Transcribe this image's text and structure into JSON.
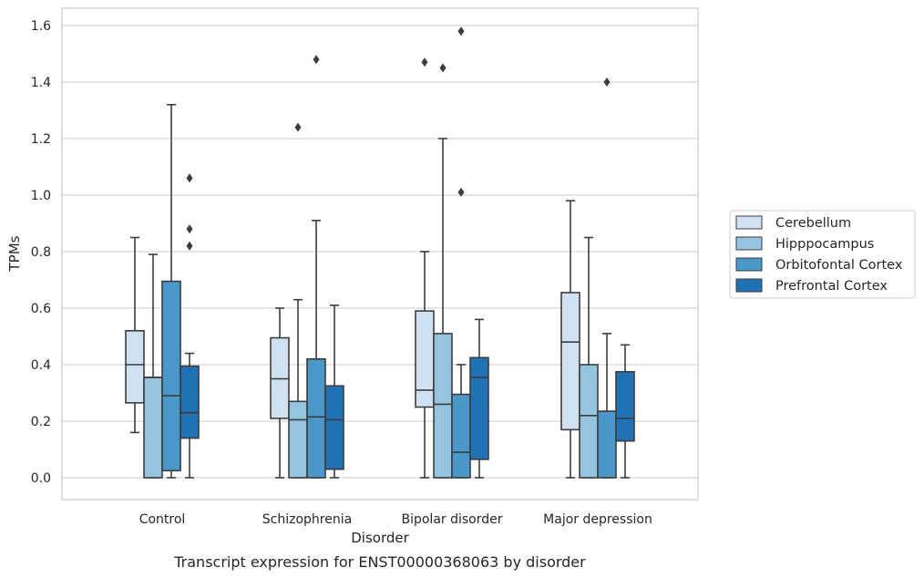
{
  "chart_data": {
    "type": "box",
    "caption": "Transcript expression for ENST00000368063 by disorder",
    "xlabel": "Disorder",
    "ylabel": "TPMs",
    "ylim": [
      -0.08,
      1.66
    ],
    "yticks": [
      0.0,
      0.2,
      0.4,
      0.6,
      0.8,
      1.0,
      1.2,
      1.4,
      1.6
    ],
    "ytick_labels": [
      "0.0",
      "0.2",
      "0.4",
      "0.6",
      "0.8",
      "1.0",
      "1.2",
      "1.4",
      "1.6"
    ],
    "grid": true,
    "legend_position": "right, outside plot",
    "categories": [
      "Control",
      "Schizophrenia",
      "Bipolar disorder",
      "Major depression"
    ],
    "series": [
      {
        "name": "Cerebellum",
        "color": "#d0e1f2",
        "boxes": [
          {
            "q1": 0.265,
            "median": 0.4,
            "q3": 0.52,
            "whisker_low": 0.16,
            "whisker_high": 0.85,
            "outliers": []
          },
          {
            "q1": 0.21,
            "median": 0.35,
            "q3": 0.495,
            "whisker_low": 0.0,
            "whisker_high": 0.6,
            "outliers": []
          },
          {
            "q1": 0.25,
            "median": 0.31,
            "q3": 0.59,
            "whisker_low": 0.0,
            "whisker_high": 0.8,
            "outliers": [
              1.47
            ]
          },
          {
            "q1": 0.17,
            "median": 0.48,
            "q3": 0.655,
            "whisker_low": 0.0,
            "whisker_high": 0.98,
            "outliers": []
          }
        ]
      },
      {
        "name": "Hipppocampus",
        "color": "#94c4df",
        "boxes": [
          {
            "q1": 0.0,
            "median": 0.355,
            "q3": 0.355,
            "whisker_low": 0.0,
            "whisker_high": 0.79,
            "outliers": []
          },
          {
            "q1": 0.0,
            "median": 0.205,
            "q3": 0.27,
            "whisker_low": 0.0,
            "whisker_high": 0.63,
            "outliers": [
              1.24
            ]
          },
          {
            "q1": 0.0,
            "median": 0.26,
            "q3": 0.51,
            "whisker_low": 0.0,
            "whisker_high": 1.2,
            "outliers": [
              1.45
            ]
          },
          {
            "q1": 0.0,
            "median": 0.22,
            "q3": 0.4,
            "whisker_low": 0.0,
            "whisker_high": 0.85,
            "outliers": []
          }
        ]
      },
      {
        "name": "Orbitofontal Cortex",
        "color": "#4a98c9",
        "boxes": [
          {
            "q1": 0.025,
            "median": 0.29,
            "q3": 0.695,
            "whisker_low": 0.0,
            "whisker_high": 1.32,
            "outliers": []
          },
          {
            "q1": 0.0,
            "median": 0.215,
            "q3": 0.42,
            "whisker_low": 0.0,
            "whisker_high": 0.91,
            "outliers": [
              1.48
            ]
          },
          {
            "q1": 0.0,
            "median": 0.09,
            "q3": 0.295,
            "whisker_low": 0.0,
            "whisker_high": 0.4,
            "outliers": [
              1.01,
              1.58
            ]
          },
          {
            "q1": 0.0,
            "median": 0.235,
            "q3": 0.235,
            "whisker_low": 0.0,
            "whisker_high": 0.51,
            "outliers": [
              1.4
            ]
          }
        ]
      },
      {
        "name": "Prefrontal Cortex",
        "color": "#2171b5",
        "boxes": [
          {
            "q1": 0.14,
            "median": 0.23,
            "q3": 0.395,
            "whisker_low": 0.0,
            "whisker_high": 0.44,
            "outliers": [
              0.82,
              0.88,
              1.06
            ]
          },
          {
            "q1": 0.03,
            "median": 0.205,
            "q3": 0.325,
            "whisker_low": 0.0,
            "whisker_high": 0.61,
            "outliers": []
          },
          {
            "q1": 0.065,
            "median": 0.355,
            "q3": 0.425,
            "whisker_low": 0.0,
            "whisker_high": 0.56,
            "outliers": []
          },
          {
            "q1": 0.13,
            "median": 0.21,
            "q3": 0.375,
            "whisker_low": 0.0,
            "whisker_high": 0.47,
            "outliers": []
          }
        ]
      }
    ]
  }
}
